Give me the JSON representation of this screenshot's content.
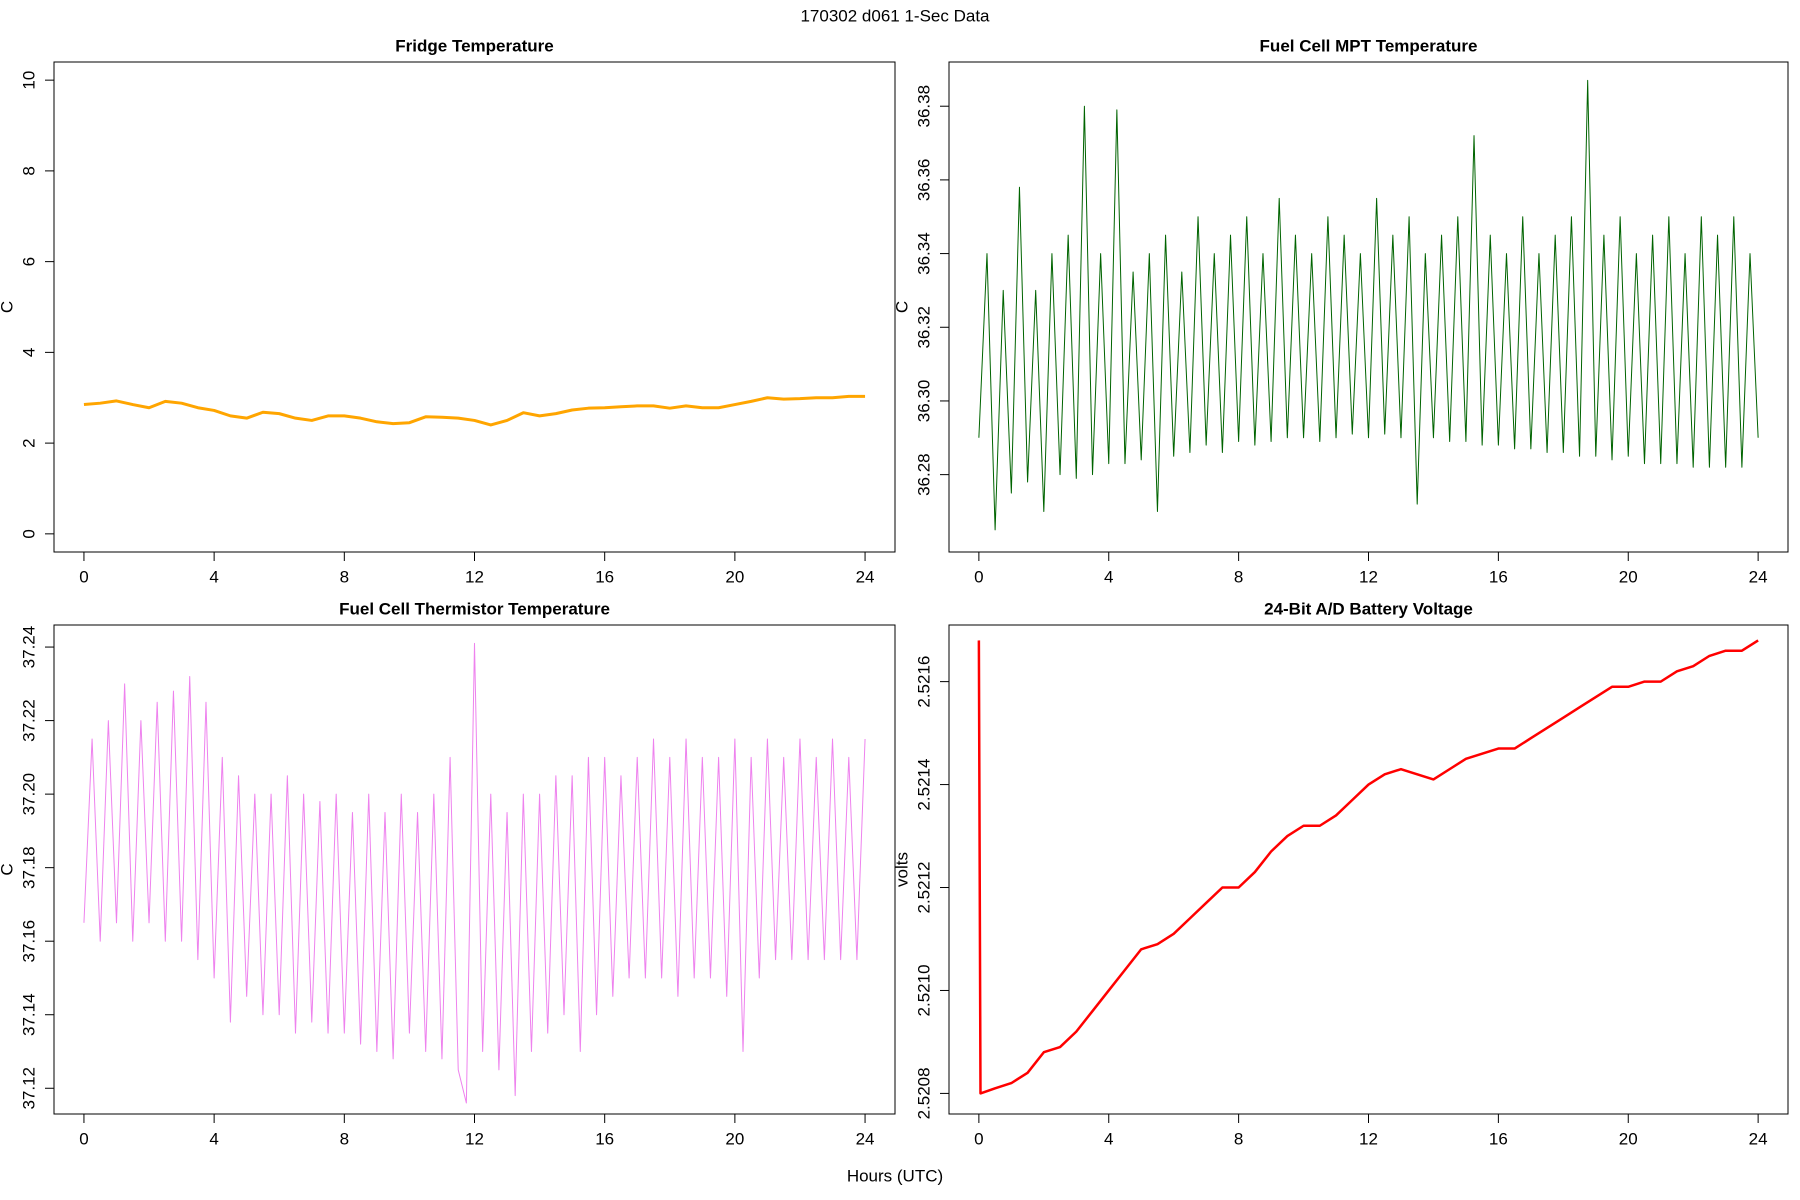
{
  "title": "170302   d061   1-Sec Data",
  "xlabel": "Hours (UTC)",
  "chart_data": [
    {
      "type": "line",
      "title": "Fridge Temperature",
      "ylabel": "C",
      "color": "#ffa500",
      "width": 3,
      "x": [
        0,
        0.5,
        1,
        1.5,
        2,
        2.5,
        3,
        3.5,
        4,
        4.5,
        5,
        5.5,
        6,
        6.5,
        7,
        7.5,
        8,
        8.5,
        9,
        9.5,
        10,
        10.5,
        11,
        11.5,
        12,
        12.5,
        13,
        13.5,
        14,
        14.5,
        15,
        15.5,
        16,
        16.5,
        17,
        17.5,
        18,
        18.5,
        19,
        19.5,
        20,
        20.5,
        21,
        21.5,
        22,
        22.5,
        23,
        23.5,
        24
      ],
      "values": [
        2.85,
        2.88,
        2.93,
        2.85,
        2.78,
        2.92,
        2.88,
        2.78,
        2.72,
        2.6,
        2.55,
        2.68,
        2.65,
        2.55,
        2.5,
        2.6,
        2.6,
        2.55,
        2.47,
        2.43,
        2.45,
        2.58,
        2.57,
        2.55,
        2.5,
        2.4,
        2.5,
        2.67,
        2.6,
        2.65,
        2.73,
        2.77,
        2.78,
        2.8,
        2.82,
        2.82,
        2.77,
        2.82,
        2.78,
        2.78,
        2.85,
        2.92,
        3.0,
        2.97,
        2.98,
        3.0,
        3.0,
        3.03,
        3.03
      ],
      "xlim": [
        -0.92,
        24.92
      ],
      "xticks": [
        0,
        4,
        8,
        12,
        16,
        20,
        24
      ],
      "ylim": [
        -0.4,
        10.4
      ],
      "yticks": [
        0,
        2,
        4,
        6,
        8,
        10
      ]
    },
    {
      "type": "line",
      "title": "Fuel Cell MPT Temperature",
      "ylabel": "C",
      "color": "#006400",
      "width": 1,
      "x": [
        0,
        0.25,
        0.5,
        0.75,
        1,
        1.25,
        1.5,
        1.75,
        2,
        2.25,
        2.5,
        2.75,
        3,
        3.25,
        3.5,
        3.75,
        4,
        4.25,
        4.5,
        4.75,
        5,
        5.25,
        5.5,
        5.75,
        6,
        6.25,
        6.5,
        6.75,
        7,
        7.25,
        7.5,
        7.75,
        8,
        8.25,
        8.5,
        8.75,
        9,
        9.25,
        9.5,
        9.75,
        10,
        10.25,
        10.5,
        10.75,
        11,
        11.25,
        11.5,
        11.75,
        12,
        12.25,
        12.5,
        12.75,
        13,
        13.25,
        13.5,
        13.75,
        14,
        14.25,
        14.5,
        14.75,
        15,
        15.25,
        15.5,
        15.75,
        16,
        16.25,
        16.5,
        16.75,
        17,
        17.25,
        17.5,
        17.75,
        18,
        18.25,
        18.5,
        18.75,
        19,
        19.25,
        19.5,
        19.75,
        20,
        20.25,
        20.5,
        20.75,
        21,
        21.25,
        21.5,
        21.75,
        22,
        22.25,
        22.5,
        22.75,
        23,
        23.25,
        23.5,
        23.75,
        24
      ],
      "values": [
        36.29,
        36.34,
        36.265,
        36.33,
        36.275,
        36.358,
        36.278,
        36.33,
        36.27,
        36.34,
        36.28,
        36.345,
        36.279,
        36.38,
        36.28,
        36.34,
        36.283,
        36.379,
        36.283,
        36.335,
        36.284,
        36.34,
        36.27,
        36.345,
        36.285,
        36.335,
        36.286,
        36.35,
        36.288,
        36.34,
        36.286,
        36.345,
        36.289,
        36.35,
        36.288,
        36.34,
        36.289,
        36.355,
        36.29,
        36.345,
        36.29,
        36.34,
        36.289,
        36.35,
        36.29,
        36.345,
        36.291,
        36.34,
        36.29,
        36.355,
        36.291,
        36.345,
        36.29,
        36.35,
        36.272,
        36.34,
        36.29,
        36.345,
        36.289,
        36.35,
        36.289,
        36.372,
        36.288,
        36.345,
        36.288,
        36.34,
        36.287,
        36.35,
        36.287,
        36.34,
        36.286,
        36.345,
        36.286,
        36.35,
        36.285,
        36.387,
        36.285,
        36.345,
        36.284,
        36.35,
        36.285,
        36.34,
        36.283,
        36.345,
        36.283,
        36.35,
        36.283,
        36.34,
        36.282,
        36.35,
        36.282,
        36.345,
        36.282,
        36.35,
        36.282,
        36.34,
        36.29
      ],
      "xlim": [
        -0.92,
        24.92
      ],
      "xticks": [
        0,
        4,
        8,
        12,
        16,
        20,
        24
      ],
      "ylim": [
        36.259,
        36.392
      ],
      "yticks": [
        36.28,
        {
          "value": 36.3,
          "label": "36.30"
        },
        36.32,
        36.34,
        36.36,
        36.38
      ]
    },
    {
      "type": "line",
      "title": "Fuel Cell Thermistor Temperature",
      "ylabel": "C",
      "color": "#ee82ee",
      "width": 1,
      "x": [
        0,
        0.25,
        0.5,
        0.75,
        1,
        1.25,
        1.5,
        1.75,
        2,
        2.25,
        2.5,
        2.75,
        3,
        3.25,
        3.5,
        3.75,
        4,
        4.25,
        4.5,
        4.75,
        5,
        5.25,
        5.5,
        5.75,
        6,
        6.25,
        6.5,
        6.75,
        7,
        7.25,
        7.5,
        7.75,
        8,
        8.25,
        8.5,
        8.75,
        9,
        9.25,
        9.5,
        9.75,
        10,
        10.25,
        10.5,
        10.75,
        11,
        11.25,
        11.5,
        11.75,
        12,
        12.25,
        12.5,
        12.75,
        13,
        13.25,
        13.5,
        13.75,
        14,
        14.25,
        14.5,
        14.75,
        15,
        15.25,
        15.5,
        15.75,
        16,
        16.25,
        16.5,
        16.75,
        17,
        17.25,
        17.5,
        17.75,
        18,
        18.25,
        18.5,
        18.75,
        19,
        19.25,
        19.5,
        19.75,
        20,
        20.25,
        20.5,
        20.75,
        21,
        21.25,
        21.5,
        21.75,
        22,
        22.25,
        22.5,
        22.75,
        23,
        23.25,
        23.5,
        23.75,
        24
      ],
      "values": [
        37.165,
        37.215,
        37.16,
        37.22,
        37.165,
        37.23,
        37.16,
        37.22,
        37.165,
        37.225,
        37.16,
        37.228,
        37.16,
        37.232,
        37.155,
        37.225,
        37.15,
        37.21,
        37.138,
        37.205,
        37.145,
        37.2,
        37.14,
        37.2,
        37.14,
        37.205,
        37.135,
        37.2,
        37.138,
        37.198,
        37.135,
        37.2,
        37.135,
        37.195,
        37.132,
        37.2,
        37.13,
        37.195,
        37.128,
        37.2,
        37.135,
        37.195,
        37.13,
        37.2,
        37.128,
        37.21,
        37.125,
        37.116,
        37.241,
        37.13,
        37.2,
        37.125,
        37.195,
        37.118,
        37.2,
        37.13,
        37.2,
        37.135,
        37.205,
        37.14,
        37.205,
        37.13,
        37.21,
        37.14,
        37.21,
        37.145,
        37.205,
        37.15,
        37.21,
        37.15,
        37.215,
        37.15,
        37.21,
        37.145,
        37.215,
        37.15,
        37.21,
        37.15,
        37.21,
        37.145,
        37.215,
        37.13,
        37.21,
        37.15,
        37.215,
        37.155,
        37.21,
        37.155,
        37.215,
        37.155,
        37.21,
        37.155,
        37.215,
        37.155,
        37.21,
        37.155,
        37.215
      ],
      "xlim": [
        -0.92,
        24.92
      ],
      "xticks": [
        0,
        4,
        8,
        12,
        16,
        20,
        24
      ],
      "ylim": [
        37.113,
        37.246
      ],
      "yticks": [
        37.12,
        37.14,
        37.16,
        37.18,
        {
          "value": 37.2,
          "label": "37.20"
        },
        37.22,
        37.24
      ]
    },
    {
      "type": "line",
      "title": "24-Bit A/D Battery Voltage",
      "ylabel": "volts",
      "color": "#ff0000",
      "width": 2.5,
      "x": [
        0,
        0.05,
        0.5,
        1,
        1.5,
        2,
        2.5,
        3,
        3.5,
        4,
        4.5,
        5,
        5.5,
        6,
        6.5,
        7,
        7.5,
        8,
        8.5,
        9,
        9.5,
        10,
        10.5,
        11,
        11.5,
        12,
        12.5,
        13,
        13.5,
        14,
        14.5,
        15,
        15.5,
        16,
        16.5,
        17,
        17.5,
        18,
        18.5,
        19,
        19.5,
        20,
        20.5,
        21,
        21.5,
        22,
        22.5,
        23,
        23.5,
        24
      ],
      "values": [
        2.52168,
        2.5208,
        2.52081,
        2.52082,
        2.52084,
        2.52088,
        2.52089,
        2.52092,
        2.52096,
        2.521,
        2.52104,
        2.52108,
        2.52109,
        2.52111,
        2.52114,
        2.52117,
        2.5212,
        2.5212,
        2.52123,
        2.52127,
        2.5213,
        2.52132,
        2.52132,
        2.52134,
        2.52137,
        2.5214,
        2.52142,
        2.52143,
        2.52142,
        2.52141,
        2.52143,
        2.52145,
        2.52146,
        2.52147,
        2.52147,
        2.52149,
        2.52151,
        2.52153,
        2.52155,
        2.52157,
        2.52159,
        2.52159,
        2.5216,
        2.5216,
        2.52162,
        2.52163,
        2.52165,
        2.52166,
        2.52166,
        2.52168
      ],
      "xlim": [
        -0.92,
        24.92
      ],
      "xticks": [
        0,
        4,
        8,
        12,
        16,
        20,
        24
      ],
      "ylim": [
        2.52076,
        2.52171
      ],
      "yticks": [
        2.5208,
        {
          "value": 2.521,
          "label": "2.5210"
        },
        2.5212,
        2.5214,
        2.5216
      ]
    }
  ]
}
